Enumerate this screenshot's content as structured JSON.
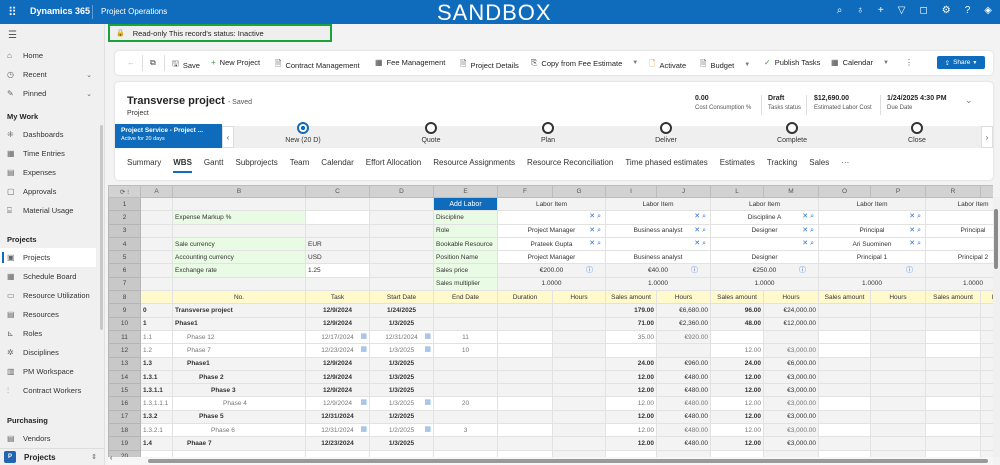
{
  "topbar": {
    "brand": "Dynamics 365",
    "app": "Project Operations",
    "environment": "SANDBOX",
    "icons": [
      "search-icon",
      "lightbulb-icon",
      "plus-icon",
      "filter-icon",
      "bell-icon",
      "gear-icon",
      "help-icon",
      "copilot-icon"
    ]
  },
  "sidebar": {
    "top": [
      {
        "label": "Home",
        "icon": "⌂"
      },
      {
        "label": "Recent",
        "icon": "◷"
      },
      {
        "label": "Pinned",
        "icon": "✎"
      }
    ],
    "sections": [
      {
        "title": "My Work",
        "items": [
          {
            "label": "Dashboards",
            "icon": "⁜"
          },
          {
            "label": "Time Entries",
            "icon": "▦"
          },
          {
            "label": "Expenses",
            "icon": "▤"
          },
          {
            "label": "Approvals",
            "icon": "▢"
          },
          {
            "label": "Material Usage",
            "icon": "⌸"
          }
        ]
      },
      {
        "title": "Projects",
        "items": [
          {
            "label": "Projects",
            "icon": "▣",
            "selected": true
          },
          {
            "label": "Schedule Board",
            "icon": "▦"
          },
          {
            "label": "Resource Utilization",
            "icon": "▭"
          },
          {
            "label": "Resources",
            "icon": "▤"
          },
          {
            "label": "Roles",
            "icon": "⊾"
          },
          {
            "label": "Disciplines",
            "icon": "✲"
          },
          {
            "label": "PM Workspace",
            "icon": "▥"
          },
          {
            "label": "Contract Workers",
            "icon": "⫶"
          }
        ]
      },
      {
        "title": "Purchasing",
        "items": [
          {
            "label": "Vendors",
            "icon": "▤"
          }
        ]
      }
    ],
    "area_switcher": {
      "badge": "P",
      "label": "Projects"
    }
  },
  "notice": "Read-only This record's status: Inactive",
  "commands": {
    "save": "Save",
    "new_project": "New Project",
    "contract_management": "Contract Management",
    "fee_management": "Fee Management",
    "project_details": "Project Details",
    "copy_fee_estimate": "Copy from Fee Estimate",
    "activate": "Activate",
    "budget": "Budget",
    "publish_tasks": "Publish Tasks",
    "calendar": "Calendar",
    "share": "Share"
  },
  "record": {
    "title": "Transverse project",
    "saved": "- Saved",
    "entity": "Project",
    "fields": [
      {
        "value": "0.00",
        "label": "Cost Consumption %"
      },
      {
        "value": "Draft",
        "label": "Tasks status"
      },
      {
        "value": "$12,690.00",
        "label": "Estimated Labor Cost"
      },
      {
        "value": "1/24/2025 4:30 PM",
        "label": "Due Date"
      }
    ],
    "process": {
      "name": "Project Service - Project ...",
      "duration": "Active for 20 days",
      "stages": [
        {
          "label": "New  (20 D)",
          "active": true
        },
        {
          "label": "Quote"
        },
        {
          "label": "Plan"
        },
        {
          "label": "Deliver"
        },
        {
          "label": "Complete"
        },
        {
          "label": "Close"
        }
      ]
    },
    "tabs": [
      "Summary",
      "WBS",
      "Gantt",
      "Subprojects",
      "Team",
      "Calendar",
      "Effort Allocation",
      "Resource Assignments",
      "Resource Reconciliation",
      "Time phased estimates",
      "Estimates",
      "Tracking",
      "Sales",
      "···"
    ],
    "active_tab": "WBS"
  },
  "grid": {
    "columns": [
      "A",
      "B",
      "C",
      "D",
      "E",
      "F",
      "G",
      "I",
      "J",
      "L",
      "M",
      "O",
      "P",
      "R",
      ""
    ],
    "config_labels": [
      "",
      "Expense Markup %",
      "",
      "Sale currency",
      "Accounting currency",
      "Exchange rate",
      ""
    ],
    "config_values": [
      "",
      "",
      "",
      "EUR",
      "USD",
      "1.25",
      ""
    ],
    "labor_labels": [
      "Add Labor",
      "Discipline",
      "Role",
      "Bookable Resource",
      "Position Name",
      "Sales price",
      "Sales multiplier"
    ],
    "labor_items": [
      {
        "header": "Labor Item",
        "discipline": "",
        "role": "Project Manager",
        "resource": "Prateek Gupta",
        "position": "Project Manager",
        "price": "€200.00",
        "multiplier": "1.0000"
      },
      {
        "header": "Labor Item",
        "discipline": "",
        "role": "Business analyst",
        "resource": "",
        "position": "Business analyst",
        "price": "€40.00",
        "multiplier": "1.0000"
      },
      {
        "header": "Labor Item",
        "discipline": "Discipline A",
        "role": "Designer",
        "resource": "",
        "position": "Designer",
        "price": "€250.00",
        "multiplier": "1.0000"
      },
      {
        "header": "Labor Item",
        "discipline": "",
        "role": "Principal",
        "resource": "Ari Suominen",
        "position": "Principal 1",
        "price": "",
        "multiplier": "1.0000"
      },
      {
        "header": "Labor Item",
        "discipline": "",
        "role": "Principal",
        "resource": "",
        "position": "Principal 2",
        "price": "",
        "multiplier": "1.0000"
      }
    ],
    "headers": [
      "No.",
      "Task",
      "Start Date",
      "End Date",
      "Duration",
      "Hours",
      "Sales amount",
      "Hours",
      "Sales amount",
      "Hours",
      "Sales amount",
      "Hours",
      "Sales amount",
      "Hours",
      "Sale"
    ],
    "tasks": [
      {
        "row": "9",
        "no": "0",
        "task": "Transverse project",
        "start": "12/9/2024",
        "end": "1/24/2025",
        "duration": "",
        "indent": 0,
        "summary": true,
        "values": [
          "",
          "",
          "179.00",
          "€6,680.00",
          "96.00",
          "€24,000.00",
          "",
          "",
          "",
          ""
        ]
      },
      {
        "row": "10",
        "no": "1",
        "task": "Phase1",
        "start": "12/9/2024",
        "end": "1/3/2025",
        "duration": "",
        "indent": 0,
        "summary": true,
        "values": [
          "",
          "",
          "71.00",
          "€2,360.00",
          "48.00",
          "€12,000.00",
          "",
          "",
          "",
          ""
        ]
      },
      {
        "row": "11",
        "no": "1.1",
        "task": "Phase 12",
        "start": "12/17/2024",
        "end": "12/31/2024",
        "duration": "11",
        "indent": 1,
        "summary": false,
        "values": [
          "",
          "",
          "35.00",
          "€920.00",
          "",
          "",
          "",
          "",
          "",
          ""
        ]
      },
      {
        "row": "12",
        "no": "1.2",
        "task": "Phase 7",
        "start": "12/23/2024",
        "end": "1/3/2025",
        "duration": "10",
        "indent": 1,
        "summary": false,
        "values": [
          "",
          "",
          "",
          "",
          "12.00",
          "€3,000.00",
          "",
          "",
          "",
          ""
        ]
      },
      {
        "row": "13",
        "no": "1.3",
        "task": "Phase1",
        "start": "12/9/2024",
        "end": "1/3/2025",
        "duration": "",
        "indent": 1,
        "summary": true,
        "values": [
          "",
          "",
          "24.00",
          "€960.00",
          "24.00",
          "€6,000.00",
          "",
          "",
          "",
          ""
        ]
      },
      {
        "row": "14",
        "no": "1.3.1",
        "task": "Phase 2",
        "start": "12/9/2024",
        "end": "1/3/2025",
        "duration": "",
        "indent": 2,
        "summary": true,
        "values": [
          "",
          "",
          "12.00",
          "€480.00",
          "12.00",
          "€3,000.00",
          "",
          "",
          "",
          ""
        ]
      },
      {
        "row": "15",
        "no": "1.3.1.1",
        "task": "Phase 3",
        "start": "12/9/2024",
        "end": "1/3/2025",
        "duration": "",
        "indent": 3,
        "summary": true,
        "values": [
          "",
          "",
          "12.00",
          "€480.00",
          "12.00",
          "€3,000.00",
          "",
          "",
          "",
          ""
        ]
      },
      {
        "row": "16",
        "no": "1.3.1.1.1",
        "task": "Phase 4",
        "start": "12/9/2024",
        "end": "1/3/2025",
        "duration": "20",
        "indent": 4,
        "summary": false,
        "values": [
          "",
          "",
          "12.00",
          "€480.00",
          "12.00",
          "€3,000.00",
          "",
          "",
          "",
          ""
        ]
      },
      {
        "row": "17",
        "no": "1.3.2",
        "task": "Phase 5",
        "start": "12/31/2024",
        "end": "1/2/2025",
        "duration": "",
        "indent": 2,
        "summary": true,
        "values": [
          "",
          "",
          "12.00",
          "€480.00",
          "12.00",
          "€3,000.00",
          "",
          "",
          "",
          ""
        ]
      },
      {
        "row": "18",
        "no": "1.3.2.1",
        "task": "Phase 6",
        "start": "12/31/2024",
        "end": "1/2/2025",
        "duration": "3",
        "indent": 3,
        "summary": false,
        "values": [
          "",
          "",
          "12.00",
          "€480.00",
          "12.00",
          "€3,000.00",
          "",
          "",
          "",
          ""
        ]
      },
      {
        "row": "19",
        "no": "1.4",
        "task": "Phaae 7",
        "start": "12/23/2024",
        "end": "1/3/2025",
        "duration": "",
        "indent": 1,
        "summary": true,
        "values": [
          "",
          "",
          "12.00",
          "€480.00",
          "12.00",
          "€3,000.00",
          "",
          "",
          "",
          ""
        ]
      },
      {
        "row": "20",
        "no": "",
        "task": "",
        "start": "",
        "end": "",
        "duration": "",
        "indent": 0,
        "summary": false,
        "values": [
          "",
          "",
          "",
          "",
          "",
          "",
          "",
          "",
          "",
          ""
        ]
      }
    ]
  }
}
